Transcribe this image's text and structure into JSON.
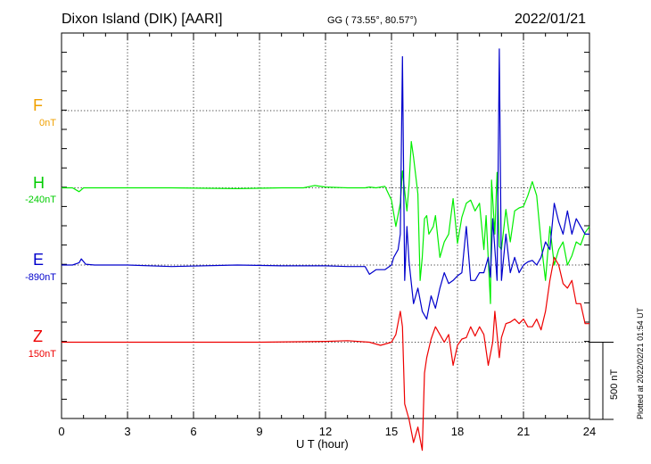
{
  "header": {
    "title": "Dixon Island (DIK)  [AARI]",
    "coords": "GG ( 73.55°,  80.57°)",
    "date": "2022/01/21"
  },
  "footer": {
    "plotted": "Plotted at 2022/02/21 01:54 UT"
  },
  "channels": [
    {
      "id": "F",
      "label": "F",
      "offset": "0nT",
      "color": "#f0a000"
    },
    {
      "id": "H",
      "label": "H",
      "offset": "-240nT",
      "color": "#00ee00"
    },
    {
      "id": "E",
      "label": "E",
      "offset": "-890nT",
      "color": "#0000cc"
    },
    {
      "id": "Z",
      "label": "Z",
      "offset": "150nT",
      "color": "#ee0000"
    }
  ],
  "scale_bar": {
    "label": "500 nT",
    "value": 500
  },
  "chart_data": {
    "type": "line",
    "xlabel": "U T (hour)",
    "xlim": [
      0,
      24
    ],
    "xticks": [
      "0",
      "3",
      "6",
      "9",
      "12",
      "15",
      "18",
      "21",
      "24"
    ],
    "grid": true,
    "units": "nT",
    "series": [
      {
        "name": "F",
        "x": [],
        "values": []
      },
      {
        "name": "H",
        "x": [
          0,
          0.5,
          0.8,
          1.0,
          1.5,
          3,
          5,
          8,
          10,
          11,
          11.5,
          12,
          13,
          13.8,
          14,
          14.3,
          14.7,
          15,
          15.2,
          15.4,
          15.5,
          15.7,
          15.8,
          15.9,
          16.0,
          16.2,
          16.3,
          16.4,
          16.5,
          16.6,
          16.7,
          16.9,
          17.0,
          17.2,
          17.4,
          17.6,
          17.8,
          18.0,
          18.2,
          18.4,
          18.6,
          18.8,
          19.0,
          19.2,
          19.3,
          19.5,
          19.55,
          19.7,
          19.8,
          19.9,
          20.0,
          20.2,
          20.4,
          20.6,
          20.8,
          21.0,
          21.2,
          21.4,
          21.6,
          21.8,
          22.0,
          22.2,
          22.4,
          22.6,
          22.8,
          23.0,
          23.2,
          23.4,
          23.6,
          23.8,
          24.0
        ],
        "values": [
          0,
          0,
          -25,
          0,
          0,
          0,
          0,
          -5,
          0,
          0,
          15,
          5,
          0,
          0,
          5,
          0,
          10,
          -80,
          -250,
          -100,
          110,
          -150,
          20,
          300,
          200,
          -40,
          -600,
          -450,
          -200,
          -180,
          -300,
          -250,
          -180,
          -450,
          -350,
          -300,
          -70,
          -360,
          -190,
          -100,
          -80,
          -150,
          -100,
          -400,
          -180,
          -750,
          50,
          -300,
          100,
          -380,
          -400,
          -140,
          -350,
          -150,
          -130,
          -120,
          -50,
          40,
          -50,
          -350,
          -600,
          -250,
          -500,
          -400,
          -350,
          -500,
          -440,
          -350,
          -370,
          -290,
          -250
        ]
      },
      {
        "name": "E",
        "x": [
          0,
          0.5,
          0.8,
          0.9,
          1.1,
          1.5,
          3,
          5,
          8,
          10,
          12,
          13,
          13.8,
          14.0,
          14.3,
          14.7,
          15,
          15.1,
          15.3,
          15.4,
          15.5,
          15.6,
          15.7,
          15.8,
          16.0,
          16.2,
          16.4,
          16.6,
          16.8,
          17.0,
          17.2,
          17.4,
          17.6,
          17.8,
          18.0,
          18.2,
          18.4,
          18.6,
          18.8,
          19.0,
          19.2,
          19.4,
          19.5,
          19.6,
          19.8,
          19.9,
          20.0,
          20.2,
          20.4,
          20.6,
          20.8,
          21.0,
          21.2,
          21.4,
          21.6,
          21.8,
          22.0,
          22.2,
          22.4,
          22.6,
          22.8,
          23.0,
          23.2,
          23.4,
          23.6,
          23.8,
          24.0
        ],
        "values": [
          0,
          0,
          15,
          40,
          5,
          0,
          0,
          -10,
          0,
          -5,
          -5,
          -10,
          -10,
          -60,
          -30,
          -30,
          0,
          50,
          100,
          200,
          1350,
          -100,
          250,
          20,
          -250,
          -150,
          -300,
          -350,
          -200,
          -280,
          -150,
          -50,
          -120,
          -100,
          -70,
          -50,
          250,
          -100,
          -100,
          -50,
          -50,
          50,
          -80,
          300,
          -100,
          1400,
          -100,
          200,
          -50,
          50,
          -50,
          0,
          20,
          30,
          0,
          50,
          150,
          100,
          400,
          280,
          200,
          350,
          200,
          300,
          250,
          200,
          200
        ]
      },
      {
        "name": "Z",
        "x": [
          0,
          3,
          6,
          9,
          12,
          13,
          14,
          14.5,
          15,
          15.2,
          15.4,
          15.5,
          15.6,
          15.8,
          16.0,
          16.2,
          16.4,
          16.5,
          16.6,
          16.8,
          17.0,
          17.2,
          17.4,
          17.6,
          17.8,
          18.0,
          18.2,
          18.4,
          18.6,
          18.8,
          19.0,
          19.2,
          19.4,
          19.6,
          19.7,
          19.9,
          20.0,
          20.2,
          20.4,
          20.6,
          20.8,
          21.0,
          21.2,
          21.4,
          21.6,
          21.8,
          22.0,
          22.2,
          22.4,
          22.6,
          22.8,
          23.0,
          23.2,
          23.4,
          23.6,
          23.8,
          24.0
        ],
        "values": [
          0,
          0,
          0,
          0,
          5,
          10,
          0,
          -20,
          0,
          50,
          200,
          100,
          -400,
          -500,
          -650,
          -550,
          -700,
          -200,
          -100,
          20,
          100,
          50,
          0,
          50,
          -150,
          -20,
          20,
          30,
          100,
          40,
          100,
          50,
          -150,
          0,
          200,
          -100,
          30,
          120,
          130,
          150,
          120,
          150,
          100,
          100,
          150,
          80,
          200,
          400,
          550,
          500,
          380,
          350,
          400,
          250,
          250,
          120,
          120
        ]
      }
    ]
  }
}
